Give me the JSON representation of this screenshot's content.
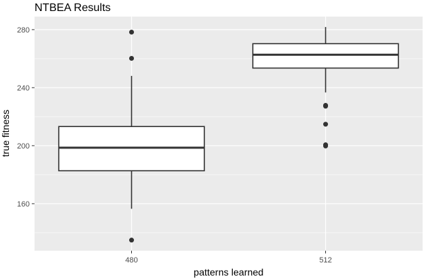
{
  "chart_data": {
    "type": "boxplot",
    "title": "NTBEA Results",
    "xlabel": "patterns learned",
    "ylabel": "true fitness",
    "categories": [
      "480",
      "512"
    ],
    "ylim": [
      127.6,
      289
    ],
    "yticks": [
      160,
      200,
      240,
      280
    ],
    "grid": true,
    "boxes": [
      {
        "category": "480",
        "whisker_low": 156.5,
        "q1": 182.7,
        "median": 198.6,
        "q3": 213.2,
        "whisker_high": 248.1,
        "outliers": [
          278.3,
          260.2,
          134.9
        ]
      },
      {
        "category": "512",
        "whisker_low": 236.7,
        "q1": 253.5,
        "median": 262.7,
        "q3": 270.3,
        "whisker_high": 281.8,
        "outliers": [
          227.8,
          227.2,
          214.8,
          200.6,
          199.8
        ]
      }
    ],
    "colors": {
      "panel": "#ebebeb",
      "grid": "#ffffff",
      "box_line": "#333333",
      "box_fill": "#ffffff"
    }
  }
}
